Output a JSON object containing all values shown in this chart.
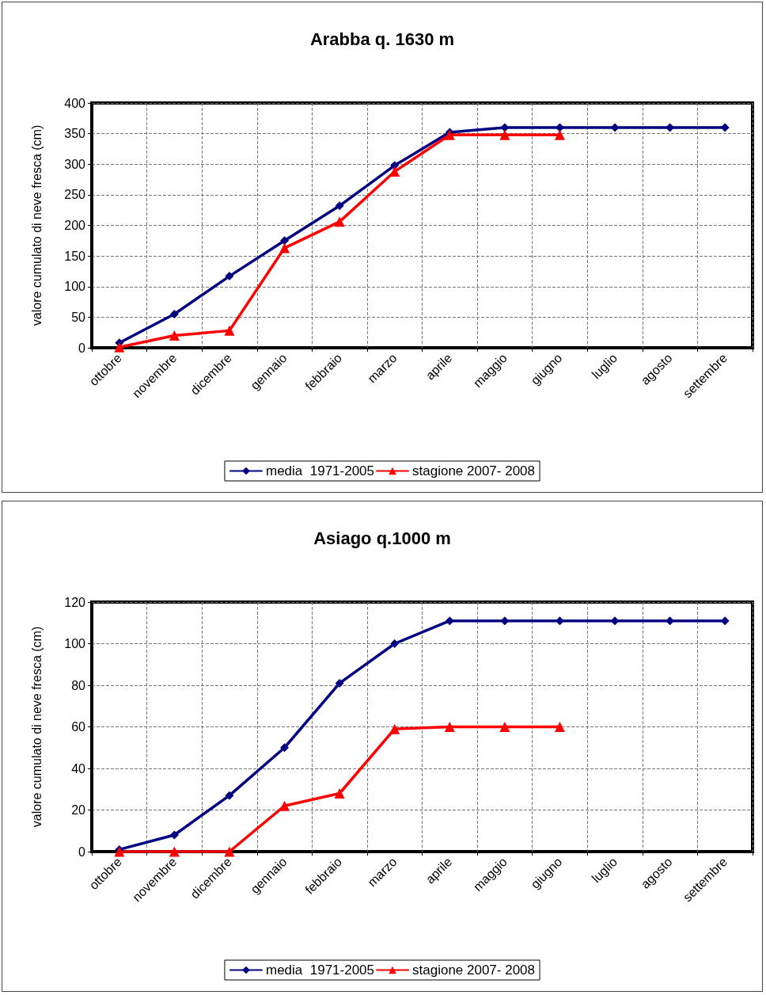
{
  "chart_data": [
    {
      "type": "line",
      "title": "Arabba q. 1630 m",
      "ylabel": "valore cumulato di neve fresca (cm)",
      "categories": [
        "ottobre",
        "novembre",
        "dicembre",
        "gennaio",
        "febbraio",
        "marzo",
        "aprile",
        "maggio",
        "giugno",
        "luglio",
        "agosto",
        "settembre"
      ],
      "series": [
        {
          "name": "media  1971-2005",
          "color": "#000080",
          "marker": "diamond",
          "values": [
            8,
            55,
            117,
            175,
            232,
            298,
            352,
            360,
            360,
            360,
            360,
            360
          ]
        },
        {
          "name": "stagione 2007- 2008",
          "color": "#ff0000",
          "marker": "triangle",
          "values": [
            1,
            20,
            28,
            163,
            206,
            288,
            348,
            348,
            348,
            null,
            null,
            null
          ]
        }
      ],
      "ylim": [
        0,
        400
      ],
      "yticks": [
        0,
        50,
        100,
        150,
        200,
        250,
        300,
        350,
        400
      ],
      "grid": true,
      "legend": "bottom",
      "line_style": "solid"
    },
    {
      "type": "line",
      "title": "Asiago q.1000 m",
      "ylabel": "valore cumulato di neve fresca (cm)",
      "categories": [
        "ottobre",
        "novembre",
        "dicembre",
        "gennaio",
        "febbraio",
        "marzo",
        "aprile",
        "maggio",
        "giugno",
        "luglio",
        "agosto",
        "settembre"
      ],
      "series": [
        {
          "name": "media  1971-2005",
          "color": "#000080",
          "marker": "diamond",
          "values": [
            1,
            8,
            27,
            50,
            81,
            100,
            111,
            111,
            111,
            111,
            111,
            111
          ]
        },
        {
          "name": "stagione 2007- 2008",
          "color": "#ff0000",
          "marker": "triangle",
          "values": [
            0,
            0,
            0,
            22,
            28,
            59,
            60,
            60,
            60,
            null,
            null,
            null
          ]
        }
      ],
      "ylim": [
        0,
        120
      ],
      "yticks": [
        0,
        20,
        40,
        60,
        80,
        100,
        120
      ],
      "grid": true,
      "legend": "bottom",
      "line_style": "solid"
    }
  ]
}
